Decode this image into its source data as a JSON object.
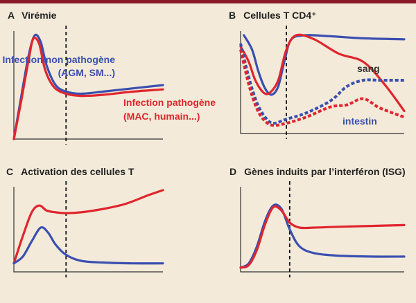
{
  "colors": {
    "non_pathogenic": "#3a4fb0",
    "pathogenic": "#e0252e",
    "axis": "#333333",
    "marker": "#111111",
    "frame": "#8a1a2a",
    "background": "#f3ead9"
  },
  "chart_data": [
    {
      "type": "line",
      "panel_letter": "A",
      "title": "Virémie",
      "xlabel": "",
      "ylabel": "",
      "xlim": [
        0,
        100
      ],
      "ylim": [
        0,
        100
      ],
      "grid": false,
      "vline_x": 35,
      "annotations": [
        {
          "text": "Infection non pathogène",
          "color": "non_pathogenic"
        },
        {
          "text": "(AGM, SM...)",
          "color": "non_pathogenic"
        },
        {
          "text": "Infection pathogène",
          "color": "pathogenic"
        },
        {
          "text": "(MAC, humain...)",
          "color": "pathogenic"
        }
      ],
      "series": [
        {
          "color": "non_pathogenic",
          "dash": false,
          "smooth": true,
          "x": [
            0,
            5,
            10,
            14,
            18,
            22,
            28,
            35,
            45,
            60,
            80,
            100
          ],
          "y": [
            0,
            40,
            78,
            96,
            90,
            68,
            50,
            44,
            42,
            44,
            47,
            50
          ]
        },
        {
          "color": "pathogenic",
          "dash": false,
          "smooth": true,
          "x": [
            0,
            5,
            10,
            13,
            17,
            21,
            27,
            35,
            45,
            60,
            80,
            100
          ],
          "y": [
            0,
            36,
            74,
            93,
            88,
            64,
            48,
            42,
            40,
            41,
            44,
            46
          ]
        }
      ]
    },
    {
      "type": "line",
      "panel_letter": "B",
      "title": "Cellules T CD4⁺",
      "xlabel": "",
      "ylabel": "",
      "xlim": [
        0,
        100
      ],
      "ylim": [
        0,
        100
      ],
      "grid": false,
      "vline_x": 28,
      "annotations": [
        {
          "text": "sang",
          "color": "axis"
        },
        {
          "text": "intestin",
          "color": "non_pathogenic"
        }
      ],
      "series": [
        {
          "color": "non_pathogenic",
          "dash": false,
          "smooth": true,
          "x": [
            2,
            7,
            11,
            15,
            19,
            23,
            27,
            31,
            40,
            55,
            75,
            100
          ],
          "y": [
            96,
            82,
            60,
            44,
            38,
            46,
            72,
            92,
            96,
            95,
            93,
            92
          ]
        },
        {
          "color": "pathogenic",
          "dash": false,
          "smooth": true,
          "x": [
            0,
            5,
            9,
            14,
            18,
            23,
            28,
            34,
            45,
            60,
            75,
            88,
            100
          ],
          "y": [
            85,
            70,
            52,
            40,
            40,
            52,
            82,
            96,
            92,
            78,
            70,
            48,
            22
          ]
        },
        {
          "color": "non_pathogenic",
          "dash": true,
          "smooth": true,
          "x": [
            0,
            5,
            10,
            15,
            20,
            28,
            40,
            55,
            65,
            75,
            85,
            100
          ],
          "y": [
            88,
            55,
            30,
            16,
            10,
            14,
            20,
            32,
            46,
            52,
            52,
            52
          ]
        },
        {
          "color": "pathogenic",
          "dash": true,
          "smooth": true,
          "x": [
            0,
            5,
            10,
            15,
            20,
            28,
            40,
            55,
            65,
            75,
            85,
            100
          ],
          "y": [
            82,
            48,
            24,
            12,
            8,
            10,
            16,
            26,
            28,
            34,
            25,
            16
          ]
        }
      ]
    },
    {
      "type": "line",
      "panel_letter": "C",
      "title": "Activation des cellules T",
      "xlabel": "",
      "ylabel": "",
      "xlim": [
        0,
        100
      ],
      "ylim": [
        0,
        100
      ],
      "grid": false,
      "vline_x": 35,
      "annotations": [],
      "series": [
        {
          "color": "pathogenic",
          "dash": false,
          "smooth": true,
          "x": [
            0,
            6,
            12,
            17,
            22,
            28,
            35,
            45,
            60,
            75,
            90,
            100
          ],
          "y": [
            10,
            42,
            70,
            78,
            72,
            70,
            69,
            70,
            74,
            80,
            90,
            96
          ]
        },
        {
          "color": "non_pathogenic",
          "dash": false,
          "smooth": true,
          "x": [
            0,
            6,
            12,
            18,
            23,
            28,
            35,
            45,
            60,
            80,
            100
          ],
          "y": [
            10,
            18,
            36,
            52,
            46,
            32,
            20,
            13,
            11,
            10,
            10
          ]
        }
      ]
    },
    {
      "type": "line",
      "panel_letter": "D",
      "title": "Gènes induits par l’interféron (ISG)",
      "xlabel": "",
      "ylabel": "",
      "xlim": [
        0,
        100
      ],
      "ylim": [
        0,
        100
      ],
      "grid": false,
      "vline_x": 30,
      "annotations": [],
      "series": [
        {
          "color": "non_pathogenic",
          "dash": false,
          "smooth": true,
          "x": [
            0,
            5,
            10,
            15,
            20,
            25,
            30,
            36,
            45,
            60,
            80,
            100
          ],
          "y": [
            5,
            10,
            30,
            60,
            78,
            74,
            50,
            30,
            22,
            19,
            18,
            18
          ]
        },
        {
          "color": "pathogenic",
          "dash": false,
          "smooth": true,
          "x": [
            0,
            5,
            10,
            15,
            20,
            25,
            30,
            36,
            45,
            60,
            80,
            100
          ],
          "y": [
            5,
            8,
            26,
            56,
            76,
            72,
            58,
            52,
            52,
            53,
            54,
            55
          ]
        }
      ]
    }
  ]
}
